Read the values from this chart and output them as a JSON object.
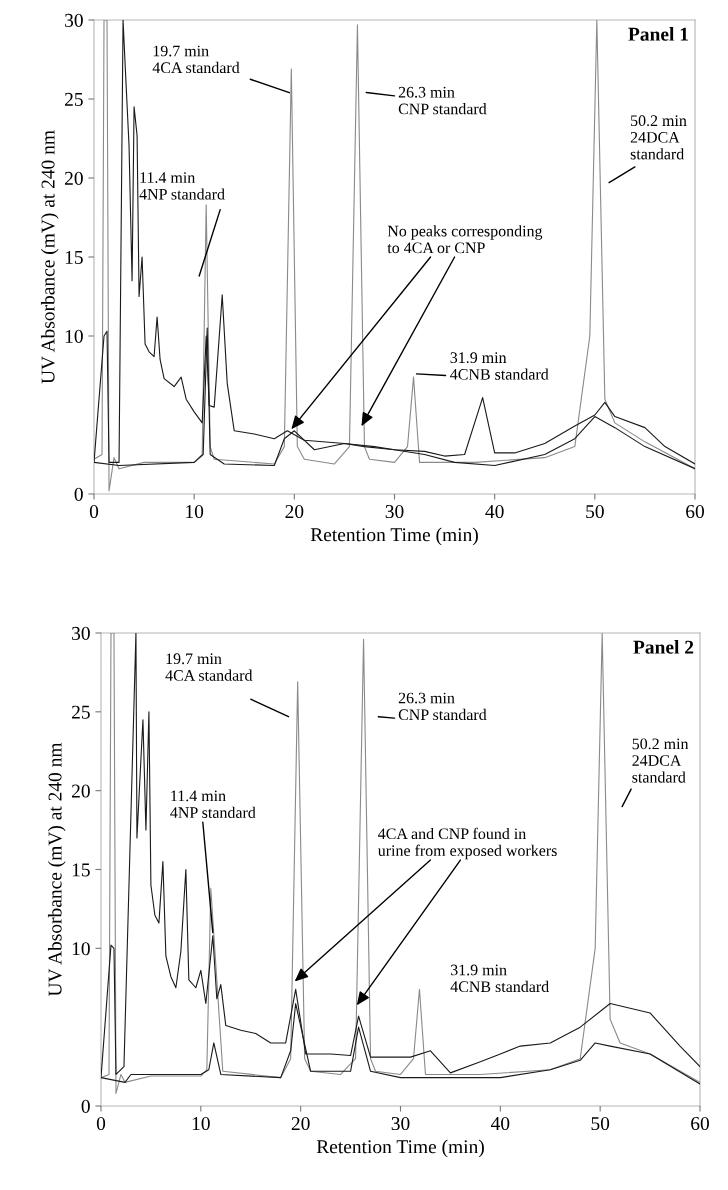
{
  "chart_data": [
    {
      "type": "line",
      "xlabel": "Retention Time (min)",
      "ylabel": "UV Absorbance (mV) at 240 nm",
      "xlim": [
        0,
        60
      ],
      "xticks": [
        0,
        10,
        20,
        30,
        40,
        50,
        60
      ],
      "ylim": [
        0,
        30
      ],
      "yticks": [
        0,
        10,
        15,
        20,
        25,
        30
      ],
      "grid": false,
      "series": [
        {
          "color": "#8a8a8a",
          "x": [
            0,
            0.8,
            1.0,
            1.3,
            1.5,
            2,
            2.5,
            5,
            10,
            10.8,
            11.2,
            11.6,
            12,
            18,
            19.0,
            19.7,
            20.3,
            21,
            24,
            25.5,
            26.3,
            27,
            27.5,
            30,
            31.3,
            31.9,
            32.5,
            38,
            45,
            48,
            49.5,
            50.2,
            51,
            52,
            55,
            60
          ],
          "values": [
            2.2,
            2.5,
            30,
            30,
            0.2,
            2.3,
            1.6,
            2.0,
            2.0,
            2.5,
            18.3,
            3.0,
            2.2,
            1.9,
            3.0,
            26.9,
            3.0,
            2.2,
            1.9,
            3.0,
            29.7,
            3.0,
            2.2,
            2.0,
            3.0,
            7.4,
            2.0,
            2.0,
            2.3,
            3.0,
            10,
            30,
            6.0,
            4.5,
            3.3,
            1.6
          ]
        },
        {
          "color": "#1a1a1a",
          "x": [
            0,
            1.0,
            1.3,
            1.5,
            2.5,
            2.9,
            3.1,
            3.5,
            3.8,
            4.0,
            4.3,
            4.5,
            4.8,
            5.1,
            5.5,
            6.0,
            6.3,
            6.6,
            7,
            8,
            8.7,
            9.2,
            10,
            10.8,
            11.2,
            11.5,
            12,
            12.8,
            13.3,
            14,
            16,
            18,
            19.3,
            21,
            25,
            28,
            30,
            33,
            35,
            37,
            38.8,
            40,
            42,
            45,
            48,
            50,
            51,
            52,
            55,
            57,
            60
          ],
          "values": [
            2.0,
            10,
            10.3,
            2.0,
            2.0,
            30,
            27.3,
            22,
            13.5,
            24.5,
            22.7,
            12.5,
            15,
            9.5,
            9.0,
            8.7,
            11.2,
            8.5,
            7.3,
            6.8,
            7.4,
            6.0,
            5.2,
            4.5,
            10,
            5.6,
            5.5,
            12.6,
            7.0,
            4.0,
            3.8,
            3.5,
            4.0,
            3.4,
            3.2,
            3.0,
            2.8,
            2.7,
            2.4,
            2.5,
            6.1,
            2.6,
            2.6,
            3.2,
            4.3,
            5.0,
            5.8,
            4.9,
            4.2,
            3.0,
            1.9
          ]
        },
        {
          "color": "#1a1a1a",
          "x": [
            0,
            2.5,
            10,
            10.9,
            11.3,
            11.6,
            13,
            18,
            19,
            20,
            22,
            25,
            27,
            30,
            33,
            36,
            40,
            45,
            48,
            50,
            52,
            55,
            60
          ],
          "values": [
            2.0,
            1.8,
            2.0,
            2.5,
            10.5,
            2.5,
            1.9,
            1.8,
            3.5,
            4.0,
            2.8,
            3.2,
            3.0,
            2.8,
            2.5,
            2.0,
            1.8,
            2.5,
            3.5,
            4.9,
            4.2,
            3.0,
            1.6
          ]
        }
      ],
      "annotations": [
        {
          "text": "19.7 min\n4CA standard",
          "x": 19.5,
          "y": 25.4
        },
        "26.3 min\nCNP standard",
        "11.4 min\n4NP standard",
        "50.2 min\n24DCA\nstandard",
        {
          "text": "31.9 min\n4CNB standard",
          "x": 32.2,
          "y": 7.6
        },
        {
          "text": "No peaks corresponding\nto 4CA or CNP",
          "x": 19.7,
          "y": 4.1
        },
        "Panel 1"
      ]
    },
    {
      "type": "line",
      "xlabel": "Retention Time (min)",
      "ylabel": "UV Absorbance (mV) at 240 nm",
      "xlim": [
        0,
        60
      ],
      "xticks": [
        0,
        10,
        20,
        30,
        40,
        50,
        60
      ],
      "ylim": [
        0,
        30
      ],
      "yticks": [
        0,
        10,
        15,
        20,
        25,
        30
      ],
      "grid": false,
      "series": [
        {
          "color": "#8a8a8a",
          "x": [
            0,
            0.8,
            1.0,
            1.3,
            1.5,
            2,
            2.4,
            5,
            10,
            10.6,
            11.0,
            11.6,
            12.2,
            18,
            19.0,
            19.7,
            20.4,
            21,
            24,
            25.5,
            26.3,
            27.0,
            27.5,
            30,
            31.3,
            31.9,
            32.5,
            38,
            45,
            48,
            49.5,
            50.2,
            51,
            52,
            55,
            60
          ],
          "values": [
            1.8,
            2.0,
            30,
            30,
            0.8,
            2.0,
            1.5,
            1.9,
            1.9,
            2.3,
            13.8,
            8.0,
            2.2,
            1.8,
            3.0,
            26.9,
            3.0,
            2.2,
            2.0,
            3.0,
            29.6,
            3.0,
            2.2,
            2.0,
            3.0,
            7.4,
            2.0,
            2.0,
            2.3,
            3.0,
            10,
            30,
            5.5,
            4.0,
            3.3,
            1.5
          ]
        },
        {
          "color": "#1a1a1a",
          "x": [
            0,
            1.0,
            1.3,
            1.5,
            2.3,
            3.5,
            3.6,
            4.2,
            4.5,
            4.8,
            5.0,
            5.4,
            5.8,
            6.2,
            6.5,
            7,
            7.5,
            8,
            8.5,
            8.8,
            9.5,
            10,
            10.5,
            11.2,
            11.6,
            12,
            12.5,
            14,
            15.5,
            17,
            18.5,
            19.5,
            20.5,
            23,
            25,
            25.8,
            27,
            29,
            31,
            33,
            35,
            38,
            40,
            42,
            45,
            48,
            51,
            55,
            58,
            60
          ],
          "values": [
            1.8,
            10.2,
            10,
            2.0,
            2.5,
            30,
            17,
            24.5,
            17.5,
            25,
            14,
            12.1,
            11.6,
            15.5,
            9.5,
            8.2,
            7.5,
            9.8,
            15,
            8.0,
            7.5,
            8.6,
            6.5,
            10.8,
            6.8,
            7.7,
            5.1,
            4.8,
            4.6,
            4.0,
            4.0,
            7.4,
            3.3,
            3.3,
            3.2,
            5.7,
            3.1,
            3.1,
            3.1,
            3.5,
            2.1,
            2.8,
            3.3,
            3.8,
            4.0,
            5.0,
            6.5,
            5.9,
            3.8,
            2.5
          ]
        },
        {
          "color": "#1a1a1a",
          "x": [
            0,
            2.4,
            3,
            10,
            10.8,
            11.3,
            12,
            18,
            19,
            19.5,
            21,
            25,
            25.8,
            27,
            30,
            33,
            40,
            45,
            48,
            49.5,
            51,
            55,
            60
          ],
          "values": [
            1.8,
            1.5,
            2.0,
            2.0,
            2.3,
            4.0,
            2.0,
            1.8,
            3.5,
            6.5,
            2.2,
            2.2,
            5.0,
            2.2,
            1.8,
            1.8,
            1.8,
            2.3,
            2.9,
            4.0,
            3.8,
            3.3,
            1.4
          ]
        }
      ],
      "annotations": [
        "19.7 min\n4CA standard",
        "26.3 min\nCNP standard",
        {
          "text": "11.4 min\n4NP standard",
          "x": 11.2,
          "y": 11.0
        },
        "50.2 min\n24DCA\nstandard",
        {
          "text": "4CA and CNP found in\nurine from exposed workers",
          "x": 19.4,
          "y": 7.9
        },
        "31.9 min\n4CNB standard",
        "Panel 2"
      ]
    }
  ]
}
